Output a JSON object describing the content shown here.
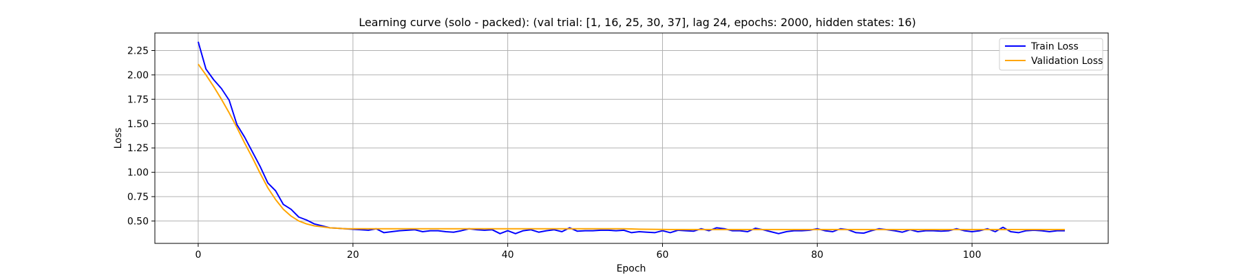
{
  "chart_data": {
    "type": "line",
    "title": "Learning curve (solo - packed): (val trial: [1, 16, 25, 30, 37], lag 24, epochs: 2000, hidden states: 16)",
    "xlabel": "Epoch",
    "ylabel": "Loss",
    "xlim": [
      -5.6,
      117.6
    ],
    "ylim": [
      0.27,
      2.43
    ],
    "x_ticks": [
      0,
      20,
      40,
      60,
      80,
      100
    ],
    "y_ticks": [
      0.5,
      0.75,
      1.0,
      1.25,
      1.5,
      1.75,
      2.0,
      2.25
    ],
    "x_tick_labels": [
      "0",
      "20",
      "40",
      "60",
      "80",
      "100"
    ],
    "y_tick_labels": [
      "0.50",
      "0.75",
      "1.00",
      "1.25",
      "1.50",
      "1.75",
      "2.00",
      "2.25"
    ],
    "grid": true,
    "legend_position": "top-right",
    "series": [
      {
        "name": "Train Loss",
        "color": "#0000ff",
        "values": [
          2.34,
          2.06,
          1.95,
          1.86,
          1.74,
          1.49,
          1.36,
          1.21,
          1.06,
          0.89,
          0.81,
          0.67,
          0.62,
          0.54,
          0.51,
          0.47,
          0.45,
          0.43,
          0.425,
          0.42,
          0.415,
          0.41,
          0.405,
          0.42,
          0.38,
          0.39,
          0.4,
          0.405,
          0.41,
          0.39,
          0.4,
          0.4,
          0.39,
          0.385,
          0.4,
          0.42,
          0.41,
          0.405,
          0.41,
          0.37,
          0.4,
          0.37,
          0.4,
          0.41,
          0.385,
          0.4,
          0.41,
          0.39,
          0.43,
          0.395,
          0.4,
          0.4,
          0.405,
          0.405,
          0.4,
          0.405,
          0.38,
          0.39,
          0.385,
          0.38,
          0.4,
          0.38,
          0.405,
          0.4,
          0.395,
          0.42,
          0.4,
          0.43,
          0.42,
          0.4,
          0.4,
          0.39,
          0.425,
          0.41,
          0.39,
          0.37,
          0.39,
          0.4,
          0.4,
          0.405,
          0.42,
          0.4,
          0.39,
          0.42,
          0.41,
          0.38,
          0.375,
          0.4,
          0.42,
          0.41,
          0.4,
          0.385,
          0.41,
          0.39,
          0.4,
          0.4,
          0.395,
          0.4,
          0.42,
          0.4,
          0.39,
          0.4,
          0.42,
          0.39,
          0.435,
          0.39,
          0.38,
          0.4,
          0.405,
          0.4,
          0.39,
          0.4,
          0.4
        ]
      },
      {
        "name": "Validation Loss",
        "color": "#ffa500",
        "values": [
          2.11,
          2.0,
          1.88,
          1.75,
          1.61,
          1.46,
          1.3,
          1.15,
          0.99,
          0.84,
          0.72,
          0.62,
          0.55,
          0.5,
          0.47,
          0.45,
          0.44,
          0.43,
          0.425,
          0.42,
          0.42,
          0.42,
          0.42,
          0.42,
          0.42,
          0.42,
          0.42,
          0.42,
          0.42,
          0.42,
          0.42,
          0.42,
          0.42,
          0.42,
          0.42,
          0.42,
          0.42,
          0.42,
          0.42,
          0.42,
          0.42,
          0.42,
          0.42,
          0.42,
          0.42,
          0.42,
          0.42,
          0.42,
          0.42,
          0.42,
          0.42,
          0.42,
          0.42,
          0.42,
          0.42,
          0.42,
          0.418,
          0.416,
          0.415,
          0.414,
          0.413,
          0.412,
          0.412,
          0.412,
          0.412,
          0.412,
          0.412,
          0.412,
          0.412,
          0.412,
          0.412,
          0.412,
          0.412,
          0.412,
          0.412,
          0.412,
          0.412,
          0.412,
          0.412,
          0.412,
          0.412,
          0.412,
          0.412,
          0.412,
          0.412,
          0.412,
          0.412,
          0.412,
          0.412,
          0.412,
          0.412,
          0.412,
          0.412,
          0.412,
          0.412,
          0.412,
          0.412,
          0.412,
          0.412,
          0.412,
          0.412,
          0.412,
          0.412,
          0.412,
          0.412,
          0.412,
          0.412,
          0.412,
          0.412,
          0.412,
          0.412,
          0.412,
          0.412
        ]
      }
    ]
  }
}
